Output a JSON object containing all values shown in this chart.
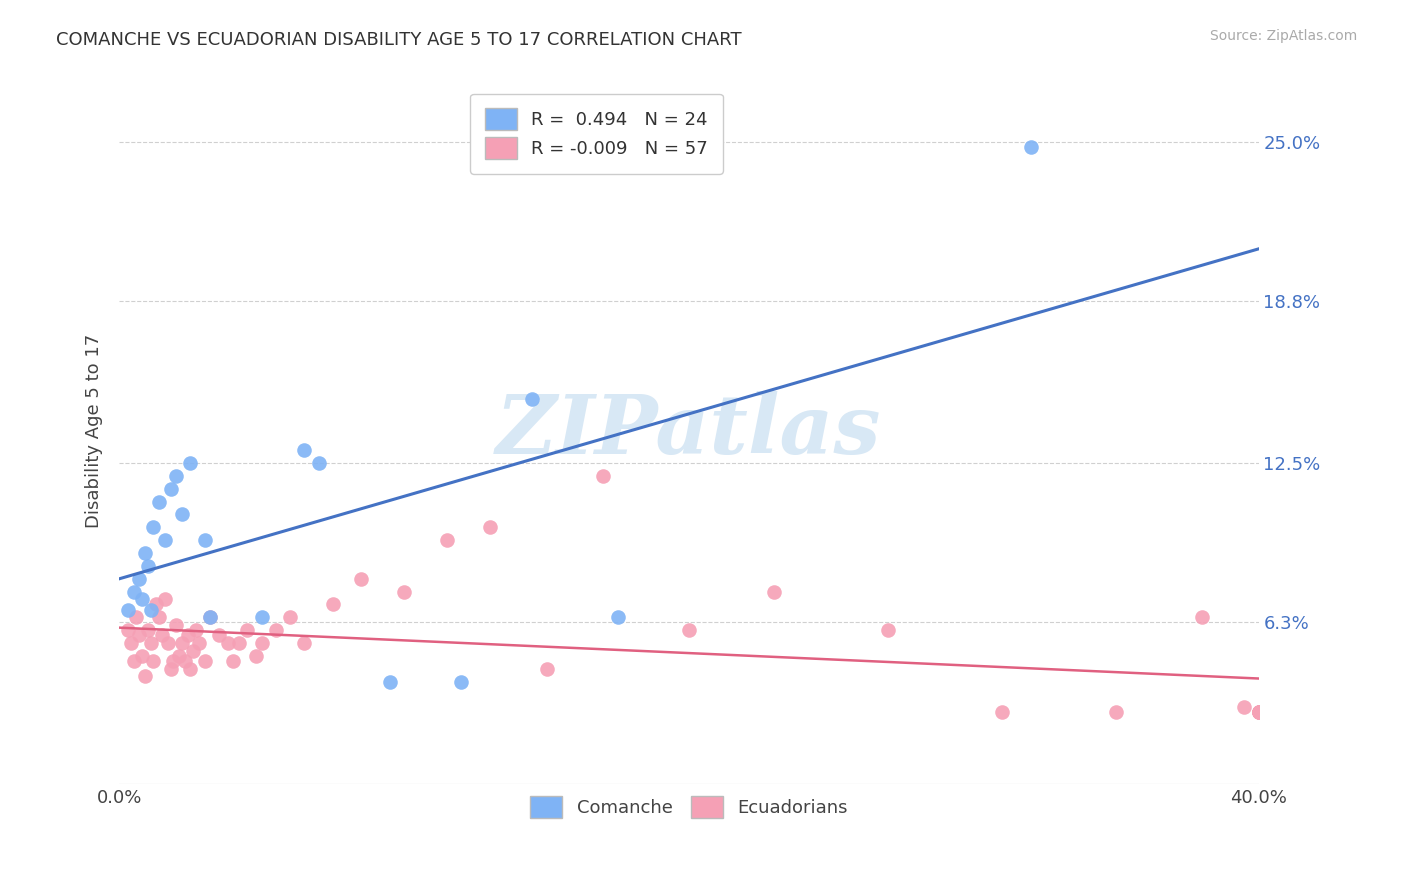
{
  "title": "COMANCHE VS ECUADORIAN DISABILITY AGE 5 TO 17 CORRELATION CHART",
  "source": "Source: ZipAtlas.com",
  "ylabel": "Disability Age 5 to 17",
  "xmin": 0.0,
  "xmax": 0.4,
  "ymin": 0.0,
  "ymax": 0.275,
  "xtick_positions": [
    0.0,
    0.1,
    0.2,
    0.3,
    0.4
  ],
  "xtick_labels": [
    "0.0%",
    "",
    "",
    "",
    "40.0%"
  ],
  "ytick_vals": [
    0.063,
    0.125,
    0.188,
    0.25
  ],
  "ytick_labels": [
    "6.3%",
    "12.5%",
    "18.8%",
    "25.0%"
  ],
  "blue_R": 0.494,
  "blue_N": 24,
  "pink_R": -0.009,
  "pink_N": 57,
  "blue_color": "#7fb3f5",
  "pink_color": "#f5a0b5",
  "blue_line_color": "#4472c4",
  "pink_line_color": "#e06080",
  "watermark": "ZIPatlas",
  "background_color": "#ffffff",
  "grid_color": "#d0d0d0",
  "comanche_x": [
    0.003,
    0.005,
    0.007,
    0.008,
    0.009,
    0.01,
    0.011,
    0.012,
    0.014,
    0.016,
    0.018,
    0.02,
    0.022,
    0.025,
    0.03,
    0.032,
    0.05,
    0.065,
    0.07,
    0.095,
    0.12,
    0.145,
    0.175,
    0.32
  ],
  "comanche_y": [
    0.068,
    0.075,
    0.08,
    0.072,
    0.09,
    0.085,
    0.068,
    0.1,
    0.11,
    0.095,
    0.115,
    0.12,
    0.105,
    0.125,
    0.095,
    0.065,
    0.065,
    0.13,
    0.125,
    0.04,
    0.04,
    0.15,
    0.065,
    0.248
  ],
  "ecuadorian_x": [
    0.003,
    0.004,
    0.005,
    0.006,
    0.007,
    0.008,
    0.009,
    0.01,
    0.011,
    0.012,
    0.013,
    0.014,
    0.015,
    0.016,
    0.017,
    0.018,
    0.019,
    0.02,
    0.021,
    0.022,
    0.023,
    0.024,
    0.025,
    0.026,
    0.027,
    0.028,
    0.03,
    0.032,
    0.035,
    0.038,
    0.04,
    0.042,
    0.045,
    0.048,
    0.05,
    0.055,
    0.06,
    0.065,
    0.075,
    0.085,
    0.1,
    0.115,
    0.13,
    0.15,
    0.17,
    0.2,
    0.23,
    0.27,
    0.31,
    0.35,
    0.38,
    0.395,
    0.4,
    0.4,
    0.4,
    0.4,
    0.4
  ],
  "ecuadorian_y": [
    0.06,
    0.055,
    0.048,
    0.065,
    0.058,
    0.05,
    0.042,
    0.06,
    0.055,
    0.048,
    0.07,
    0.065,
    0.058,
    0.072,
    0.055,
    0.045,
    0.048,
    0.062,
    0.05,
    0.055,
    0.048,
    0.058,
    0.045,
    0.052,
    0.06,
    0.055,
    0.048,
    0.065,
    0.058,
    0.055,
    0.048,
    0.055,
    0.06,
    0.05,
    0.055,
    0.06,
    0.065,
    0.055,
    0.07,
    0.08,
    0.075,
    0.095,
    0.1,
    0.045,
    0.12,
    0.06,
    0.075,
    0.06,
    0.028,
    0.028,
    0.065,
    0.03,
    0.028,
    0.028,
    0.028,
    0.028,
    0.028
  ]
}
